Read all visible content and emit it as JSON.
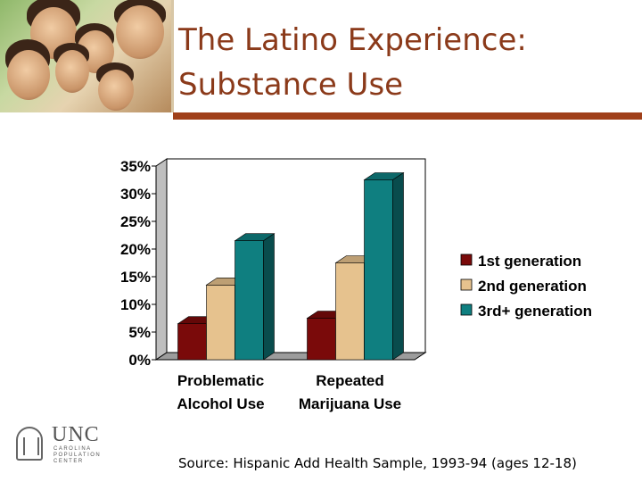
{
  "slide": {
    "title_line1": "The Latino Experience:",
    "title_line2": "Substance Use",
    "source": "Source: Hispanic Add Health Sample, 1993-94 (ages 12-18)",
    "logo": {
      "name": "UNC",
      "subtitle_lines": [
        "CAROLINA",
        "POPULATION",
        "CENTER"
      ]
    }
  },
  "chart_data": {
    "type": "bar",
    "style": "3d-clustered-column",
    "categories": [
      [
        "Problematic",
        "Alcohol Use"
      ],
      [
        "Repeated",
        "Marijuana Use"
      ]
    ],
    "series": [
      {
        "name": "1st generation",
        "values": [
          6.5,
          7.5
        ],
        "color": "#7a0a0a"
      },
      {
        "name": "2nd generation",
        "values": [
          13.5,
          17.5
        ],
        "color": "#e6c28e"
      },
      {
        "name": "3rd+ generation",
        "values": [
          21.5,
          32.5
        ],
        "color": "#0f7f80"
      }
    ],
    "yticks": [
      "0%",
      "5%",
      "10%",
      "15%",
      "20%",
      "25%",
      "30%",
      "35%"
    ],
    "ylim": [
      0,
      35
    ],
    "legend_position": "right",
    "grid": false
  }
}
